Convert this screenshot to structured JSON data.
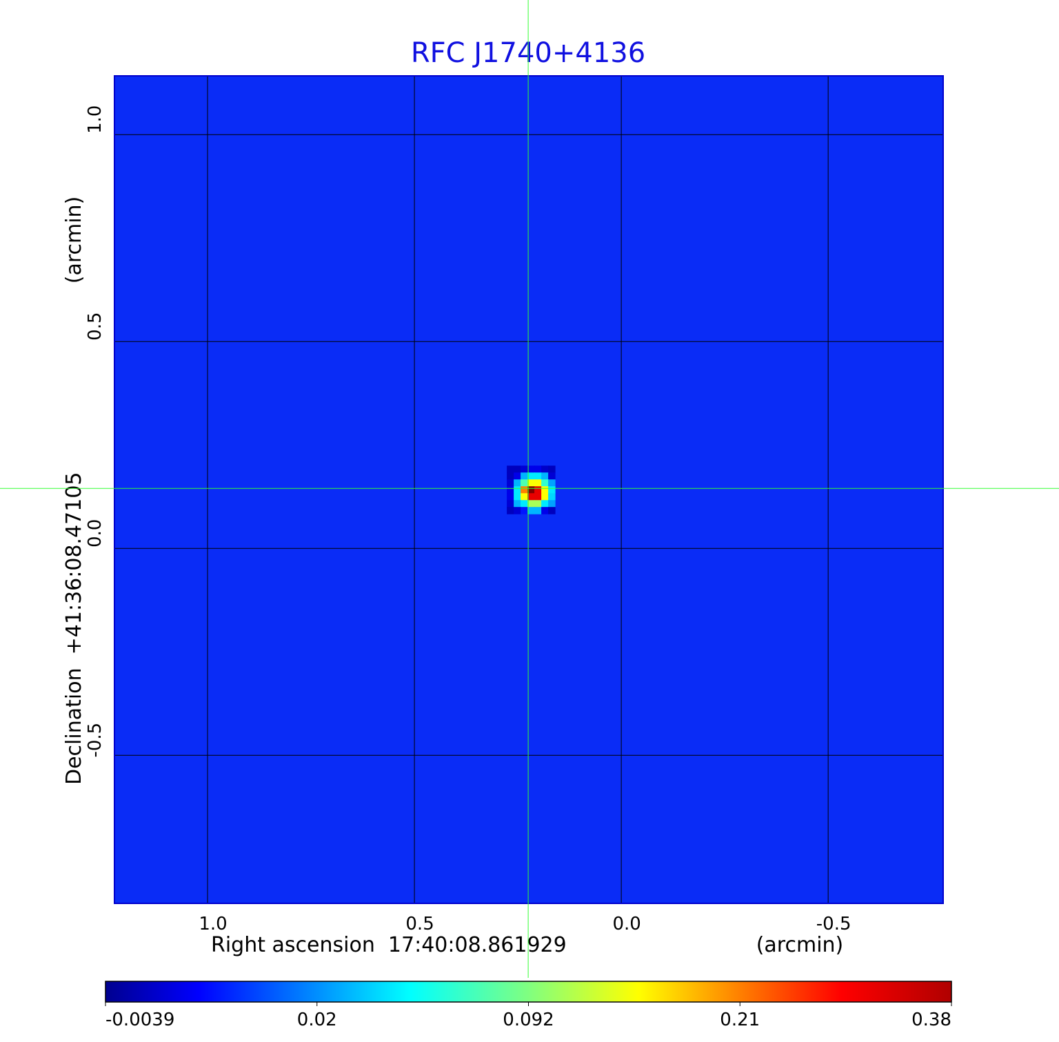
{
  "chart_data": {
    "type": "heatmap",
    "title": "RFC J1740+4136",
    "xlabel": "Right ascension  17:40:08.861929",
    "xunit": "(arcmin)",
    "ylabel": "Declination  +41:36:08.47105",
    "yunit": "(arcmin)",
    "xlim": [
      1.225,
      -0.778
    ],
    "ylim": [
      -0.858,
      1.142
    ],
    "xticks": [
      1.0,
      0.5,
      0.0,
      -0.5
    ],
    "xtick_labels": [
      "1.0",
      "0.5",
      "0.0",
      "-0.5"
    ],
    "yticks": [
      1.0,
      0.5,
      0.0,
      -0.5
    ],
    "ytick_labels": [
      "1.0",
      "0.5",
      "0.0",
      "-0.5"
    ],
    "grid": true,
    "grid_color": "#000000",
    "crosshair": {
      "x": 0.225,
      "y": 0.145,
      "color": "#33ff33"
    },
    "colormap": "jet",
    "background_value": 0.002,
    "colorbar": {
      "ticks": [
        -0.0039,
        0.02,
        0.092,
        0.21,
        0.38
      ],
      "tick_labels": [
        "-0.0039",
        "0.02",
        "0.092",
        "0.21",
        "0.38"
      ],
      "placement": "bottom"
    },
    "source_patch": {
      "note_units": "flux values of a 7x7 pixel patch around the peak, rows top to bottom",
      "values": [
        [
          0.002,
          0.002,
          0.004,
          0.006,
          0.006,
          0.003,
          0.002
        ],
        [
          0.002,
          0.006,
          0.035,
          0.05,
          0.05,
          0.035,
          0.004
        ],
        [
          0.004,
          0.035,
          0.078,
          0.15,
          0.15,
          0.07,
          0.03
        ],
        [
          0.006,
          0.05,
          0.21,
          0.38,
          0.31,
          0.15,
          0.05
        ],
        [
          0.006,
          0.05,
          0.15,
          0.31,
          0.31,
          0.15,
          0.045
        ],
        [
          0.004,
          0.035,
          0.05,
          0.11,
          0.11,
          0.05,
          0.03
        ],
        [
          0.002,
          0.004,
          0.01,
          0.035,
          0.035,
          0.006,
          0.002
        ]
      ]
    }
  }
}
